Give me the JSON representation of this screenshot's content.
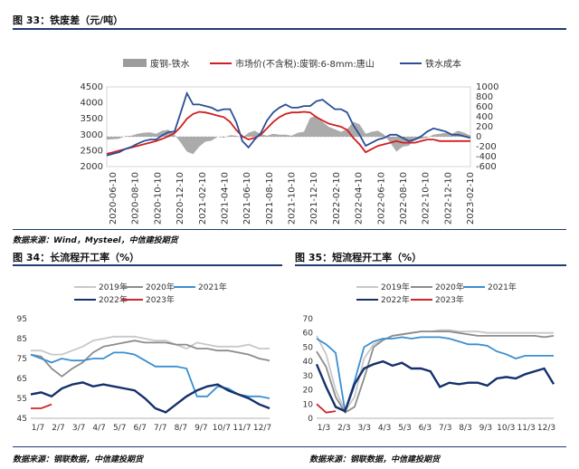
{
  "fig33": {
    "title": "图 33：铁废差（元/吨）",
    "source": "数据来源：Wind，Mysteel，中信建投期货"
  },
  "fig34": {
    "title": "图 34：长流程开工率（%）",
    "source": "数据来源：钢联数据，中信建投期货"
  },
  "fig35": {
    "title": "图 35：短流程开工率（%）",
    "source": "数据来源：钢联数据，中信建投期货"
  },
  "colors": {
    "spread": "#9c9c9c",
    "market": "#d21f1f",
    "cost": "#2a4f95",
    "y2019": "#c8c8c8",
    "y2020": "#8c8c8c",
    "y2021": "#3a8fd0",
    "y2022": "#16306b",
    "y2023": "#d2232a",
    "rule": "#1f3b73"
  },
  "chart_data": [
    {
      "type": "line",
      "name": "fig33",
      "series": [
        {
          "name": "废钢-铁水",
          "kind": "area",
          "axis": "right",
          "color": "#9c9c9c",
          "values": [
            -60,
            -50,
            -40,
            10,
            20,
            60,
            80,
            90,
            60,
            120,
            140,
            40,
            -120,
            -300,
            -350,
            -200,
            -100,
            -80,
            0,
            -20,
            30,
            20,
            -20,
            80,
            120,
            50,
            20,
            60,
            40,
            40,
            20,
            80,
            100,
            380,
            420,
            300,
            200,
            150,
            100,
            150,
            300,
            250,
            60,
            100,
            120,
            40,
            -120,
            -300,
            -200,
            -180,
            -60,
            -40,
            -20,
            40,
            60,
            80,
            60,
            120,
            80,
            20
          ]
        },
        {
          "name": "市场价(不含税):废钢:6-8mm:唐山",
          "kind": "line",
          "axis": "left",
          "color": "#d21f1f",
          "values": [
            2400,
            2450,
            2500,
            2550,
            2600,
            2650,
            2700,
            2750,
            2800,
            2870,
            2950,
            3050,
            3250,
            3500,
            3650,
            3720,
            3700,
            3650,
            3600,
            3550,
            3400,
            3150,
            2950,
            2850,
            2900,
            3000,
            3200,
            3400,
            3550,
            3650,
            3700,
            3700,
            3720,
            3700,
            3550,
            3450,
            3350,
            3300,
            3250,
            3150,
            2900,
            2700,
            2450,
            2550,
            2650,
            2700,
            2750,
            2800,
            2750,
            2750,
            2750,
            2800,
            2850,
            2850,
            2800,
            2800,
            2800,
            2800,
            2800,
            2800
          ]
        },
        {
          "name": "铁水成本",
          "kind": "line",
          "axis": "left",
          "color": "#2a4f95",
          "values": [
            2350,
            2400,
            2450,
            2550,
            2620,
            2720,
            2800,
            2850,
            2850,
            2980,
            3080,
            3100,
            3700,
            4300,
            3950,
            3950,
            3900,
            3850,
            3750,
            3800,
            3800,
            3400,
            2800,
            2600,
            2850,
            3050,
            3450,
            3700,
            3850,
            3950,
            3850,
            3850,
            3900,
            3900,
            4050,
            4100,
            3950,
            3800,
            3800,
            3700,
            3300,
            3000,
            2650,
            2750,
            2850,
            2900,
            3000,
            3000,
            2900,
            2800,
            2850,
            2950,
            3100,
            3200,
            3150,
            3100,
            3000,
            3000,
            2950,
            2900
          ]
        }
      ],
      "x_tick_labels": [
        "2020-06-10",
        "2020-08-10",
        "2020-10-10",
        "2020-12-10",
        "2021-02-10",
        "2021-04-10",
        "2021-06-10",
        "2021-08-10",
        "2021-10-10",
        "2021-12-10",
        "2022-02-10",
        "2022-04-10",
        "2022-06-10",
        "2022-08-10",
        "2022-10-10",
        "2022-12-10",
        "2023-02-10"
      ],
      "ylim_left": [
        2000,
        4500
      ],
      "yticks_left": [
        2000,
        2500,
        3000,
        3500,
        4000,
        4500
      ],
      "ylim_right": [
        -600,
        1000
      ],
      "yticks_right": [
        -600,
        -400,
        -200,
        0,
        200,
        400,
        600,
        800,
        1000
      ],
      "legend": "top"
    },
    {
      "type": "line",
      "name": "fig34",
      "x_tick_labels": [
        "1/7",
        "2/7",
        "3/7",
        "4/7",
        "5/7",
        "6/7",
        "7/7",
        "8/7",
        "9/7",
        "10/7",
        "11/7",
        "12/7"
      ],
      "ylim": [
        45,
        95
      ],
      "yticks": [
        45,
        55,
        65,
        75,
        85,
        95
      ],
      "legend": "top",
      "series": [
        {
          "name": "2019年",
          "color": "#c8c8c8",
          "values": [
            79,
            79,
            77,
            77,
            79,
            81,
            84,
            85,
            86,
            86,
            86,
            85,
            84,
            84,
            82,
            80,
            83,
            82,
            81,
            81,
            81,
            82,
            80,
            80
          ]
        },
        {
          "name": "2020年",
          "color": "#8c8c8c",
          "values": [
            77,
            76,
            70,
            66,
            70,
            73,
            78,
            81,
            82,
            83,
            84,
            83,
            83,
            83,
            82,
            82,
            80,
            80,
            79,
            79,
            78,
            77,
            75,
            74
          ]
        },
        {
          "name": "2021年",
          "color": "#3a8fd0",
          "values": [
            77,
            75,
            73,
            75,
            74,
            74,
            75,
            75,
            78,
            78,
            77,
            74,
            71,
            71,
            71,
            70,
            56,
            56,
            61,
            60,
            57,
            56,
            56,
            55
          ]
        },
        {
          "name": "2022年",
          "color": "#16306b",
          "values": [
            57,
            58,
            56,
            60,
            62,
            63,
            61,
            62,
            61,
            60,
            59,
            55,
            50,
            48,
            52,
            56,
            59,
            61,
            62,
            59,
            57,
            55,
            52,
            50
          ]
        },
        {
          "name": "2023年",
          "color": "#d2232a",
          "values": [
            50,
            50,
            52
          ]
        }
      ]
    },
    {
      "type": "line",
      "name": "fig35",
      "x_tick_labels": [
        "1/3",
        "2/3",
        "3/3",
        "4/3",
        "5/3",
        "6/3",
        "7/3",
        "8/3",
        "9/3",
        "10/3",
        "11/3",
        "12/3"
      ],
      "ylim": [
        0,
        70
      ],
      "yticks": [
        0,
        10,
        20,
        30,
        40,
        50,
        60,
        70
      ],
      "legend": "top",
      "series": [
        {
          "name": "2019年",
          "color": "#c8c8c8",
          "values": [
            58,
            45,
            20,
            5,
            15,
            42,
            52,
            55,
            58,
            59,
            60,
            61,
            61,
            62,
            62,
            61,
            61,
            61,
            60,
            60,
            60,
            60,
            60,
            60,
            60,
            60
          ]
        },
        {
          "name": "2020年",
          "color": "#8c8c8c",
          "values": [
            47,
            36,
            15,
            4,
            8,
            28,
            50,
            55,
            58,
            59,
            60,
            61,
            61,
            61,
            61,
            60,
            59,
            58,
            58,
            58,
            58,
            58,
            58,
            58,
            57,
            58
          ]
        },
        {
          "name": "2021年",
          "color": "#3a8fd0",
          "values": [
            56,
            52,
            46,
            5,
            26,
            50,
            54,
            56,
            56,
            57,
            56,
            57,
            57,
            57,
            56,
            54,
            52,
            52,
            51,
            47,
            45,
            42,
            44,
            44,
            44,
            44
          ]
        },
        {
          "name": "2022年",
          "color": "#16306b",
          "values": [
            38,
            22,
            8,
            5,
            24,
            35,
            38,
            40,
            37,
            39,
            35,
            35,
            33,
            22,
            25,
            24,
            25,
            25,
            23,
            28,
            29,
            28,
            31,
            33,
            35,
            24
          ]
        },
        {
          "name": "2023年",
          "color": "#d2232a",
          "values": [
            10,
            4,
            5
          ]
        }
      ]
    }
  ]
}
